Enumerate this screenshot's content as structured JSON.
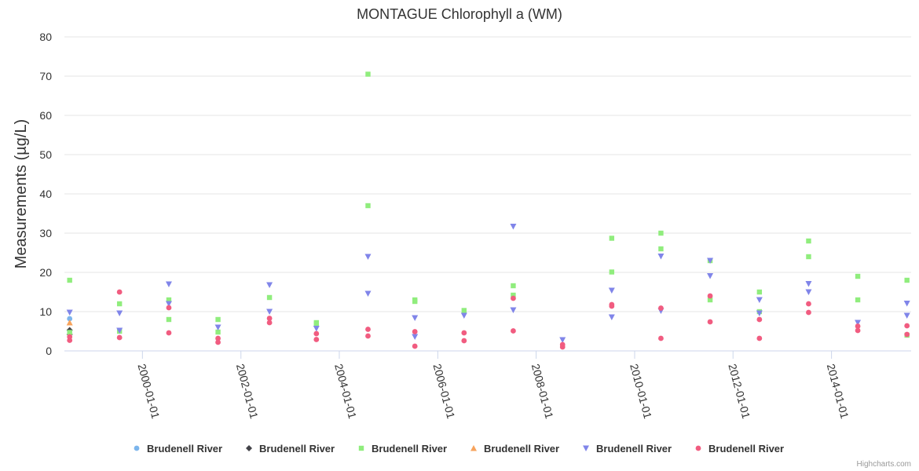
{
  "chart_data": {
    "type": "scatter",
    "title": "MONTAGUE Chlorophyll a (WM)",
    "ylabel": "Measurements (µg/L)",
    "xlabel": "",
    "ylim": [
      0,
      80
    ],
    "yticks": [
      0,
      10,
      20,
      30,
      40,
      50,
      60,
      70,
      80
    ],
    "xlim": [
      "1998-06-01",
      "2015-08-15"
    ],
    "xticks": [
      "2000-01-01",
      "2002-01-01",
      "2004-01-01",
      "2006-01-01",
      "2008-01-01",
      "2010-01-01",
      "2012-01-01",
      "2014-01-01"
    ],
    "grid": true,
    "legend_position": "bottom-center",
    "series": [
      {
        "name": "Brudenell River",
        "color": "#7cb5ec",
        "marker": "circle",
        "points": [
          [
            "1998-07-10",
            8.2
          ],
          [
            "1998-07-10",
            5.0
          ]
        ]
      },
      {
        "name": "Brudenell River",
        "color": "#434348",
        "marker": "diamond",
        "points": [
          [
            "1998-07-10",
            5.3
          ],
          [
            "1998-07-10",
            4.2
          ]
        ]
      },
      {
        "name": "Brudenell River",
        "color": "#90ed7d",
        "marker": "square",
        "points": [
          [
            "1998-07-10",
            18.0
          ],
          [
            "1998-07-10",
            4.7
          ],
          [
            "1999-07-15",
            12.0
          ],
          [
            "1999-07-15",
            5.0
          ],
          [
            "2000-07-15",
            13.0
          ],
          [
            "2000-07-15",
            8.0
          ],
          [
            "2001-07-15",
            8.0
          ],
          [
            "2001-07-15",
            4.8
          ],
          [
            "2002-08-01",
            13.6
          ],
          [
            "2003-07-15",
            7.2
          ],
          [
            "2003-07-15",
            6.8
          ],
          [
            "2004-08-01",
            70.5
          ],
          [
            "2004-08-01",
            37.0
          ],
          [
            "2005-07-15",
            13.0
          ],
          [
            "2005-07-15",
            12.6
          ],
          [
            "2006-07-15",
            10.3
          ],
          [
            "2007-07-15",
            16.6
          ],
          [
            "2007-07-15",
            14.2
          ],
          [
            "2009-07-15",
            28.7
          ],
          [
            "2009-07-15",
            20.1
          ],
          [
            "2010-07-15",
            30.0
          ],
          [
            "2010-07-15",
            26.0
          ],
          [
            "2011-07-15",
            23.0
          ],
          [
            "2011-07-15",
            13.0
          ],
          [
            "2012-07-15",
            15.0
          ],
          [
            "2012-07-15",
            10.0
          ],
          [
            "2013-07-15",
            28.0
          ],
          [
            "2013-07-15",
            24.0
          ],
          [
            "2014-07-15",
            19.0
          ],
          [
            "2014-07-15",
            13.0
          ],
          [
            "2015-07-15",
            18.0
          ],
          [
            "2015-07-15",
            4.0
          ]
        ]
      },
      {
        "name": "Brudenell River",
        "color": "#f7a35c",
        "marker": "triangle",
        "points": [
          [
            "1998-07-10",
            7.2
          ]
        ]
      },
      {
        "name": "Brudenell River",
        "color": "#8085e9",
        "marker": "triangle-down",
        "points": [
          [
            "1998-07-10",
            9.8
          ],
          [
            "1999-07-15",
            9.6
          ],
          [
            "1999-07-15",
            5.2
          ],
          [
            "2000-07-15",
            17.0
          ],
          [
            "2000-07-15",
            12.0
          ],
          [
            "2001-07-15",
            6.0
          ],
          [
            "2002-08-01",
            16.8
          ],
          [
            "2002-08-01",
            10.0
          ],
          [
            "2003-07-15",
            5.7
          ],
          [
            "2004-08-01",
            24.0
          ],
          [
            "2004-08-01",
            14.6
          ],
          [
            "2005-07-15",
            8.4
          ],
          [
            "2005-07-15",
            3.6
          ],
          [
            "2006-07-15",
            9.0
          ],
          [
            "2007-07-15",
            31.7
          ],
          [
            "2007-07-15",
            10.4
          ],
          [
            "2008-07-15",
            2.8
          ],
          [
            "2009-07-15",
            15.4
          ],
          [
            "2009-07-15",
            8.6
          ],
          [
            "2010-07-15",
            24.1
          ],
          [
            "2010-07-15",
            10.2
          ],
          [
            "2011-07-15",
            23.0
          ],
          [
            "2011-07-15",
            19.1
          ],
          [
            "2012-07-15",
            13.0
          ],
          [
            "2012-07-15",
            9.6
          ],
          [
            "2013-07-15",
            17.1
          ],
          [
            "2013-07-15",
            15.0
          ],
          [
            "2014-07-15",
            7.2
          ],
          [
            "2015-07-15",
            12.1
          ],
          [
            "2015-07-15",
            9.0
          ]
        ]
      },
      {
        "name": "Brudenell River",
        "color": "#f15c80",
        "marker": "circle",
        "points": [
          [
            "1998-07-10",
            3.6
          ],
          [
            "1998-07-10",
            2.7
          ],
          [
            "1999-07-15",
            15.0
          ],
          [
            "1999-07-15",
            3.4
          ],
          [
            "2000-07-15",
            11.0
          ],
          [
            "2000-07-15",
            4.6
          ],
          [
            "2001-07-15",
            3.2
          ],
          [
            "2001-07-15",
            2.2
          ],
          [
            "2002-08-01",
            8.3
          ],
          [
            "2002-08-01",
            7.2
          ],
          [
            "2003-07-15",
            4.4
          ],
          [
            "2003-07-15",
            2.9
          ],
          [
            "2004-08-01",
            5.5
          ],
          [
            "2004-08-01",
            3.8
          ],
          [
            "2005-07-15",
            4.9
          ],
          [
            "2005-07-15",
            1.2
          ],
          [
            "2006-07-15",
            4.6
          ],
          [
            "2006-07-15",
            2.6
          ],
          [
            "2007-07-15",
            13.4
          ],
          [
            "2007-07-15",
            5.1
          ],
          [
            "2008-07-15",
            1.6
          ],
          [
            "2008-07-15",
            1.0
          ],
          [
            "2009-07-15",
            11.8
          ],
          [
            "2009-07-15",
            11.4
          ],
          [
            "2010-07-15",
            10.9
          ],
          [
            "2010-07-15",
            3.2
          ],
          [
            "2011-07-15",
            14.0
          ],
          [
            "2011-07-15",
            7.4
          ],
          [
            "2012-07-15",
            8.0
          ],
          [
            "2012-07-15",
            3.2
          ],
          [
            "2013-07-15",
            12.0
          ],
          [
            "2013-07-15",
            9.8
          ],
          [
            "2014-07-15",
            6.3
          ],
          [
            "2014-07-15",
            5.2
          ],
          [
            "2015-07-15",
            6.4
          ],
          [
            "2015-07-15",
            4.2
          ]
        ]
      }
    ]
  },
  "legend": {
    "items": [
      {
        "label": "Brudenell River",
        "color": "#7cb5ec",
        "marker": "circle"
      },
      {
        "label": "Brudenell River",
        "color": "#434348",
        "marker": "diamond"
      },
      {
        "label": "Brudenell River",
        "color": "#90ed7d",
        "marker": "square"
      },
      {
        "label": "Brudenell River",
        "color": "#f7a35c",
        "marker": "triangle"
      },
      {
        "label": "Brudenell River",
        "color": "#8085e9",
        "marker": "triangle-down"
      },
      {
        "label": "Brudenell River",
        "color": "#f15c80",
        "marker": "circle"
      }
    ]
  },
  "credits": "Highcharts.com"
}
